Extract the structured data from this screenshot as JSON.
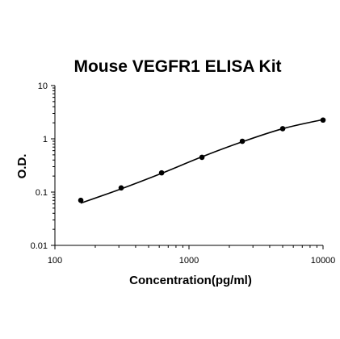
{
  "chart_data": {
    "type": "scatter",
    "title": "Mouse VEGFR1 ELISA Kit",
    "xlabel": "Concentration(pg/ml)",
    "ylabel": "O.D.",
    "x_scale": "log",
    "y_scale": "log",
    "xlim": [
      100,
      10000
    ],
    "ylim": [
      0.01,
      10
    ],
    "x_ticks": [
      {
        "value": 100,
        "label": "100"
      },
      {
        "value": 1000,
        "label": "1000"
      },
      {
        "value": 10000,
        "label": "10000"
      }
    ],
    "y_ticks": [
      {
        "value": 0.01,
        "label": "0.01"
      },
      {
        "value": 0.1,
        "label": "0.1"
      },
      {
        "value": 1,
        "label": "1"
      },
      {
        "value": 10,
        "label": "10"
      }
    ],
    "grid": false,
    "legend": "none",
    "series": [
      {
        "x": [
          156,
          312,
          625,
          1250,
          2500,
          5000,
          10000
        ],
        "y": [
          0.07,
          0.12,
          0.23,
          0.45,
          0.9,
          1.55,
          2.25
        ]
      }
    ],
    "fit_curve": {
      "x": [
        156,
        312,
        625,
        1250,
        2500,
        5000,
        10000
      ],
      "y": [
        0.062,
        0.115,
        0.225,
        0.46,
        0.88,
        1.55,
        2.3
      ]
    },
    "colors": {
      "line": "#000000",
      "marker": "#000000",
      "axis": "#000000"
    }
  }
}
